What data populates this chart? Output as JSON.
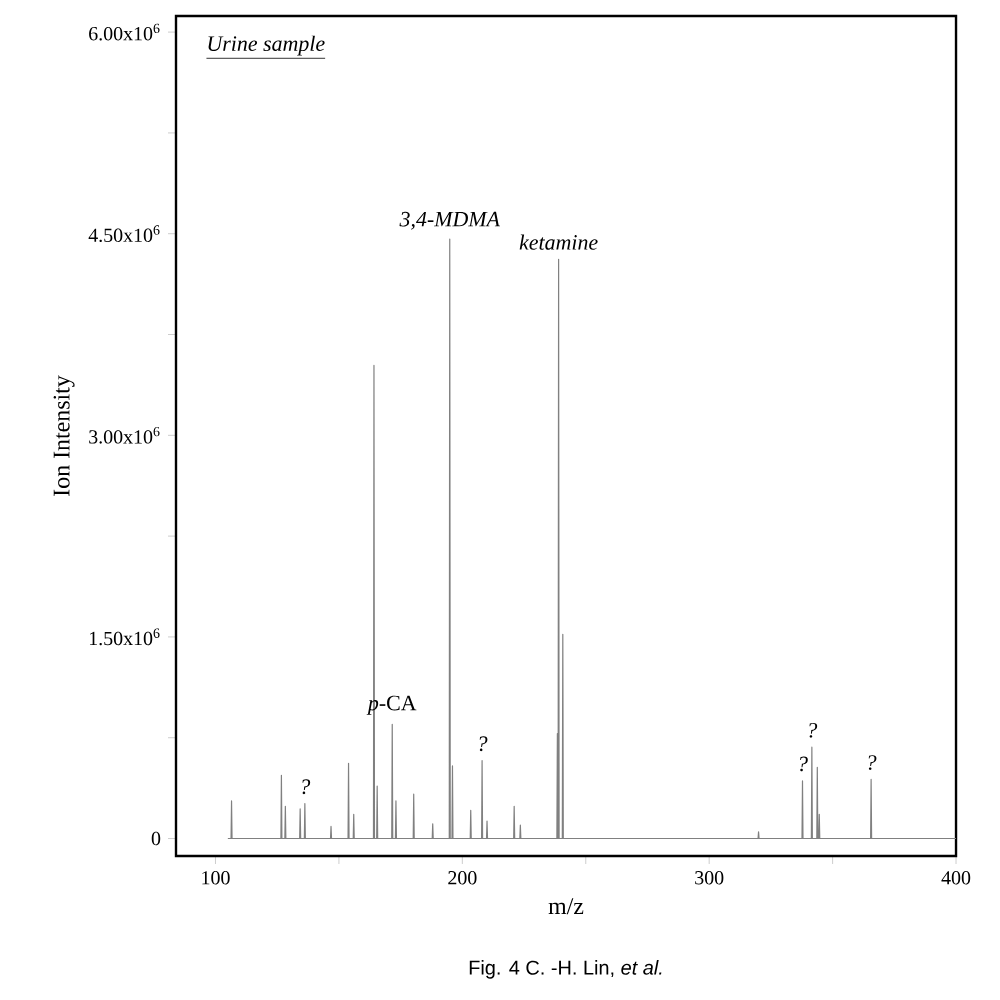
{
  "chart_data": {
    "type": "line",
    "xlabel": "m/z",
    "ylabel": "Ion Intensity",
    "color": "#808080",
    "marker": "none",
    "x": [
      105,
      106.3,
      106.5,
      106.7,
      126.5,
      126.7,
      126.9,
      128.1,
      128.3,
      128.5,
      134.1,
      134.3,
      134.5,
      136,
      136.2,
      136.4,
      146.6,
      146.8,
      147,
      153.7,
      153.9,
      154.1,
      155.8,
      156,
      156.2,
      164,
      164.2,
      164.4,
      165.3,
      165.5,
      165.7,
      171.4,
      171.6,
      171.8,
      172.9,
      173.1,
      173.3,
      180.1,
      180.3,
      180.5,
      187.8,
      188,
      188.2,
      194.7,
      194.9,
      195.1,
      195.8,
      196,
      196.2,
      203.2,
      203.4,
      203.6,
      207.8,
      208,
      208.2,
      209.8,
      210,
      210.2,
      220.8,
      221,
      221.2,
      223.3,
      223.5,
      223.7,
      238.3,
      238.5,
      238.7,
      238.8,
      239,
      239.2,
      240.5,
      240.7,
      240.9,
      319.8,
      320,
      320.2,
      337.6,
      337.8,
      338,
      341.4,
      341.6,
      341.8,
      343.6,
      343.8,
      344,
      344.4,
      344.6,
      344.8,
      365.4,
      365.6,
      365.8,
      400
    ],
    "values": [
      0,
      0,
      280000,
      0,
      0,
      470000,
      0,
      0,
      240000,
      0,
      0,
      220000,
      0,
      0,
      260000,
      0,
      0,
      90000,
      0,
      0,
      560000,
      0,
      0,
      180000,
      0,
      0,
      3520000,
      0,
      0,
      390000,
      0,
      0,
      850000,
      0,
      0,
      280000,
      0,
      0,
      330000,
      0,
      0,
      110000,
      0,
      0,
      4460000,
      0,
      0,
      540000,
      0,
      0,
      210000,
      0,
      0,
      580000,
      0,
      0,
      130000,
      0,
      0,
      240000,
      0,
      0,
      100000,
      0,
      0,
      780000,
      0,
      0,
      4310000,
      0,
      0,
      1520000,
      0,
      0,
      50000,
      0,
      0,
      430000,
      0,
      0,
      680000,
      0,
      0,
      530000,
      0,
      0,
      180000,
      0,
      0,
      440000,
      0,
      0
    ],
    "xlim": [
      84,
      400
    ],
    "xticks": [
      100,
      {
        "value": 150,
        "label": null
      },
      200,
      {
        "value": 250,
        "label": null
      },
      300,
      {
        "value": 350,
        "label": null
      },
      400
    ],
    "ylim": [
      -130000,
      6120000
    ],
    "yticks": [
      {
        "value": 0,
        "label": "0"
      },
      {
        "value": 750000,
        "label": null
      },
      {
        "value": 1500000,
        "label": "1.50x10$^{6}$"
      },
      {
        "value": 2250000,
        "label": null
      },
      {
        "value": 3000000,
        "label": "3.00x10$^{6}$"
      },
      {
        "value": 3750000,
        "label": null
      },
      {
        "value": 4500000,
        "label": "4.50x10$^{6}$"
      },
      {
        "value": 5250000,
        "label": null
      },
      {
        "value": 6000000,
        "label": "6.00x10$^{6}$"
      }
    ],
    "annotations": [
      "Urine sample",
      "Fig. 4 C. -H. Lin, *et al.*",
      {
        "text": "3,4-MDMA",
        "x": 194.9,
        "y": 4460000
      },
      {
        "text": "ketamine",
        "x": 239,
        "y": 4310000
      },
      {
        "text": "*p*-CA",
        "x": 171.6,
        "y": 850000
      },
      {
        "text": "?",
        "x": 136.2,
        "y": 260000
      },
      {
        "text": "?",
        "x": 208,
        "y": 580000
      },
      {
        "text": "?",
        "x": 337.8,
        "y": 430000
      },
      {
        "text": "?",
        "x": 341.6,
        "y": 680000
      },
      {
        "text": "?",
        "x": 365.6,
        "y": 440000
      }
    ]
  }
}
